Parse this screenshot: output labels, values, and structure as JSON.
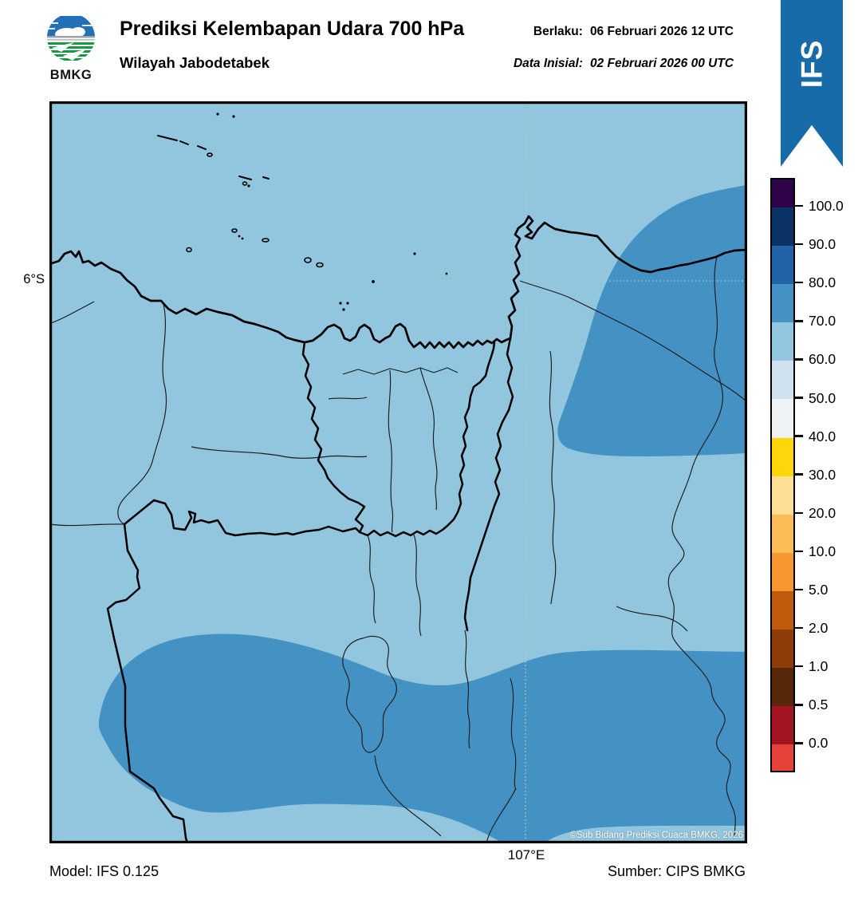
{
  "header": {
    "logo_text": "BMKG",
    "title": "Prediksi Kelembapan Udara 700 hPa",
    "region": "Wilayah Jabodetabek",
    "valid": {
      "label": "Berlaku:",
      "value": "06 Februari 2026 12 UTC"
    },
    "initial": {
      "label": "Data Inisial:",
      "value": "02 Februari 2026 00 UTC"
    },
    "ribbon": "IFS"
  },
  "map": {
    "lat_tick": "6°S",
    "lon_tick": "107°E",
    "copyright": "©Sub Bidang Prediksi Cuaca BMKG, 2026"
  },
  "colors": {
    "sea": "#92C5DE",
    "high_rh": "#4492C4",
    "ribbon_blue": "#176BA8",
    "gridline": "#C6C6C6"
  },
  "colorbar": {
    "unit": "%",
    "tick_labels": [
      "100.0",
      "90.0",
      "80.0",
      "70.0",
      "60.0",
      "50.0",
      "40.0",
      "30.0",
      "20.0",
      "10.0",
      "5.0",
      "2.0",
      "1.0",
      "0.5",
      "0.0"
    ],
    "segment_colors": [
      "#2E0347",
      "#0B3366",
      "#2263A8",
      "#4492C4",
      "#92C5DE",
      "#CFE0EE",
      "#EEF2F5",
      "#FFD60A",
      "#FEDF94",
      "#FDBC55",
      "#F89630",
      "#C25A0B",
      "#8F3D08",
      "#58280A",
      "#A31420",
      "#E6423A"
    ]
  },
  "footer": {
    "model": "Model: IFS 0.125",
    "source": "Sumber: CIPS BMKG"
  }
}
